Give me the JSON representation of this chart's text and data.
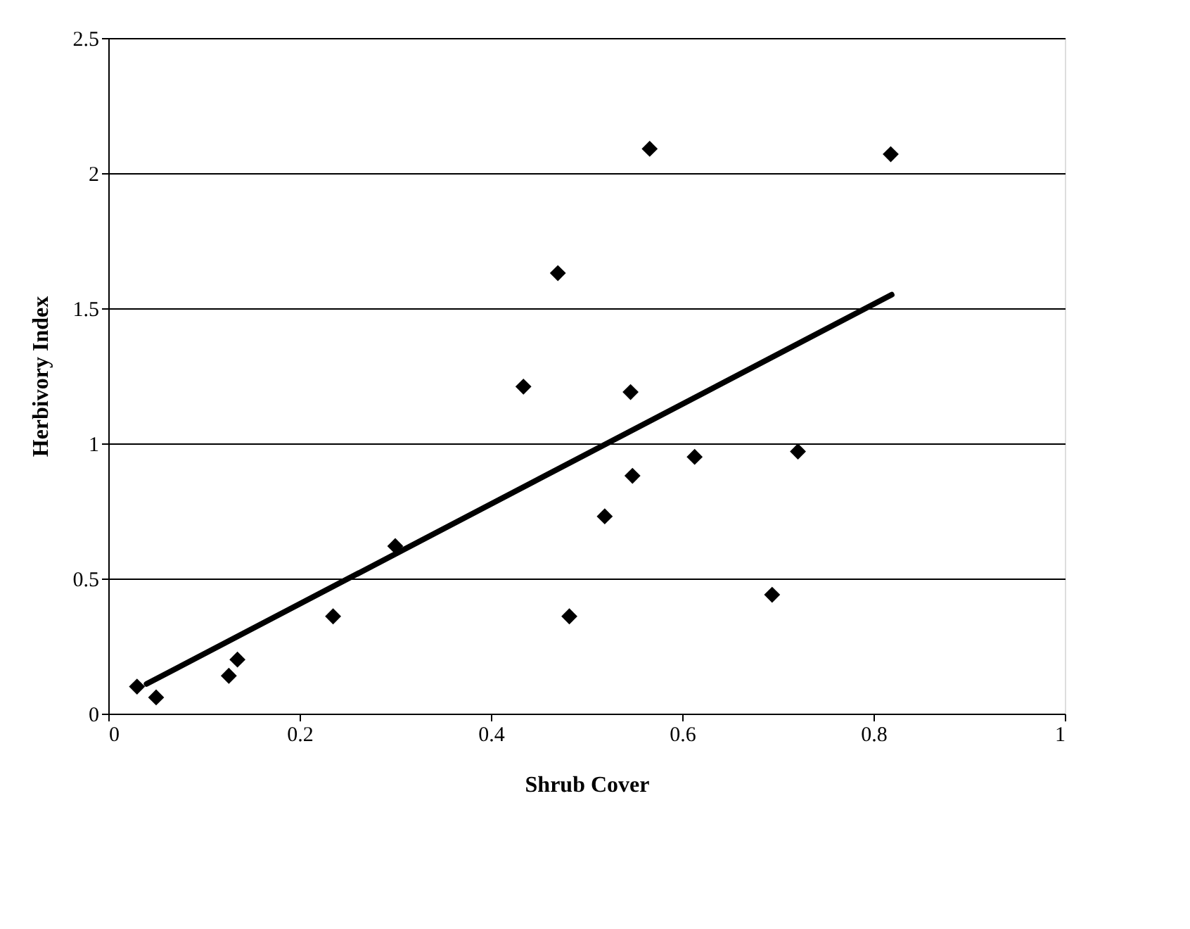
{
  "chart_data": {
    "type": "scatter",
    "xlabel": "Shrub Cover",
    "ylabel": "Herbivory Index",
    "series": [
      {
        "color": "#000000",
        "marker": "diamond",
        "x": [
          0.03,
          0.05,
          0.126,
          0.135,
          0.235,
          0.3,
          0.434,
          0.47,
          0.482,
          0.519,
          0.546,
          0.548,
          0.566,
          0.613,
          0.694,
          0.721,
          0.818
        ],
        "values": [
          0.1,
          0.06,
          0.14,
          0.2,
          0.36,
          0.62,
          1.21,
          1.63,
          0.36,
          0.73,
          1.19,
          0.88,
          2.09,
          0.95,
          0.44,
          0.97,
          2.07
        ]
      },
      {
        "type": "line",
        "color": "#000000",
        "x": [
          0.04,
          0.819
        ],
        "values": [
          0.11,
          1.55
        ]
      }
    ],
    "xlim": [
      0,
      1
    ],
    "xticks": [
      0,
      0.2,
      0.4,
      0.6,
      0.8,
      1
    ],
    "ylim": [
      0,
      2.5
    ],
    "yticks": [
      0,
      0.5,
      1,
      1.5,
      2,
      2.5
    ],
    "grid": "y"
  }
}
